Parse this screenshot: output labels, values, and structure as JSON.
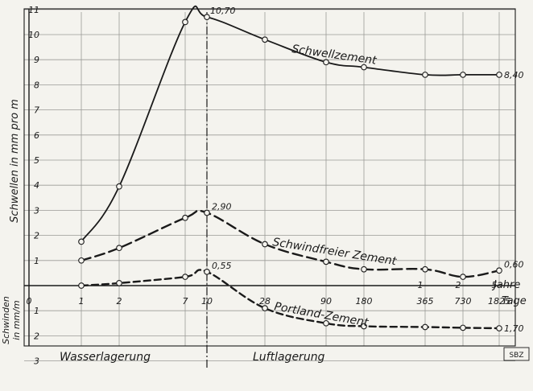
{
  "chart_data": {
    "type": "line",
    "x_tick_labels": [
      "0",
      "1",
      "2",
      "7",
      "10",
      "28",
      "90",
      "180",
      "365",
      "730",
      "1825"
    ],
    "x_unit_label": "Tage",
    "year_tick_labels": [
      {
        "x": "365",
        "label": "1"
      },
      {
        "x": "730",
        "label": "2"
      },
      {
        "x": "1825",
        "label": "5"
      }
    ],
    "year_unit_label": "Jahre",
    "ylabel_upper": "Schwellen in mm pro m",
    "ylabel_lower_line1": "Schwinden",
    "ylabel_lower_line2": "in mm/m",
    "y_tick_labels_upper": [
      "1",
      "2",
      "3",
      "4",
      "5",
      "6",
      "7",
      "8",
      "9",
      "10",
      "11"
    ],
    "y_tick_labels_lower": [
      "1",
      "2",
      "3"
    ],
    "ylim": [
      -3,
      11
    ],
    "divider_at": "10",
    "region_labels": {
      "left": "Wasserlagerung",
      "right": "Luftlagerung"
    },
    "series": [
      {
        "name": "Schwellzement",
        "style": "solid",
        "x": [
          "1",
          "2",
          "7",
          "10",
          "28",
          "90",
          "180",
          "365",
          "730",
          "1825"
        ],
        "y": [
          1.75,
          3.95,
          10.5,
          10.7,
          9.8,
          8.9,
          8.7,
          8.4,
          8.4,
          8.4
        ]
      },
      {
        "name": "Schwindfreier Zement",
        "style": "dashed",
        "x": [
          "1",
          "2",
          "7",
          "10",
          "28",
          "90",
          "180",
          "365",
          "730",
          "1825"
        ],
        "y": [
          1.0,
          1.5,
          2.7,
          2.9,
          1.65,
          0.95,
          0.65,
          0.65,
          0.35,
          0.6
        ]
      },
      {
        "name": "Portland-Zement",
        "style": "dashed",
        "x": [
          "1",
          "2",
          "7",
          "10",
          "28",
          "90",
          "180",
          "365",
          "730",
          "1825"
        ],
        "y": [
          0.0,
          0.1,
          0.35,
          0.55,
          -0.9,
          -1.5,
          -1.62,
          -1.65,
          -1.68,
          -1.7
        ]
      }
    ],
    "data_labels": [
      {
        "series": 0,
        "x": "10",
        "text": "10,70"
      },
      {
        "series": 0,
        "x": "1825",
        "text": "8,40"
      },
      {
        "series": 1,
        "x": "10",
        "text": "2,90"
      },
      {
        "series": 1,
        "x": "1825",
        "text": "0,60"
      },
      {
        "series": 2,
        "x": "10",
        "text": "0,55"
      },
      {
        "series": 2,
        "x": "1825",
        "text": "1,70"
      }
    ],
    "grid": true,
    "line_color": "#1a1a1a"
  },
  "badge": "SBZ"
}
